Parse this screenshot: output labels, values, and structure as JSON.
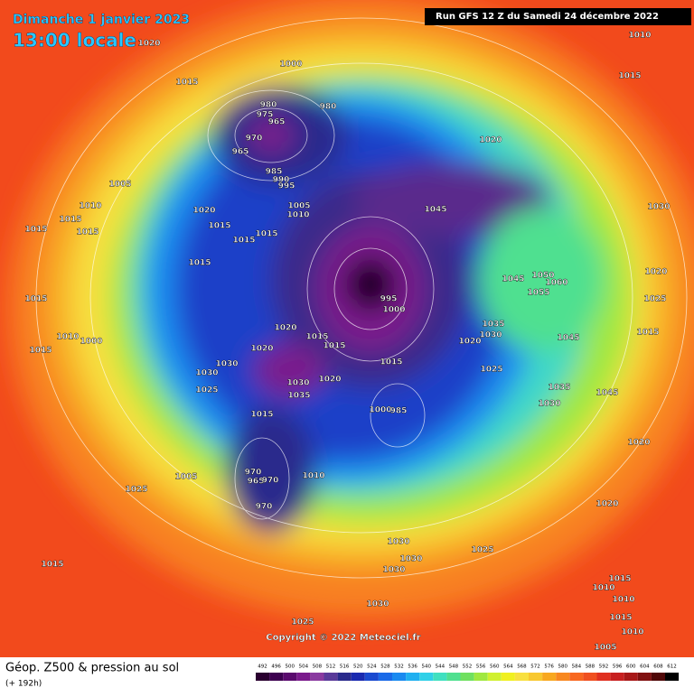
{
  "header": {
    "date": "Dimanche 1 janvier 2023",
    "time": "13:00 locale",
    "run": "Run GFS 12 Z du Samedi 24 décembre 2022"
  },
  "copyright": "Copyright © 2022 Meteociel.fr",
  "footer": {
    "title": "Géop. Z500 & pression au sol",
    "lead": "(+ 192h)"
  },
  "scale": {
    "labels": [
      "492",
      "496",
      "500",
      "504",
      "508",
      "512",
      "516",
      "520",
      "524",
      "528",
      "532",
      "536",
      "540",
      "544",
      "548",
      "552",
      "556",
      "560",
      "564",
      "568",
      "572",
      "576",
      "580",
      "584",
      "588",
      "592",
      "596",
      "600",
      "604",
      "608",
      "612"
    ],
    "colors": [
      "#2a0030",
      "#3d0050",
      "#5a0a6e",
      "#7a1a8c",
      "#8a3aa0",
      "#5a3a9a",
      "#2a2a8c",
      "#1a2ab0",
      "#1a4ad0",
      "#1a6ae8",
      "#1a8af0",
      "#20b0f0",
      "#30d0e8",
      "#40e0c0",
      "#50e090",
      "#70e060",
      "#a0e840",
      "#d0f030",
      "#f0f020",
      "#f8e040",
      "#f8c830",
      "#f8a820",
      "#f88820",
      "#f86820",
      "#f05020",
      "#e03020",
      "#c82020",
      "#a81818",
      "#801010",
      "#500808",
      "#000000"
    ]
  },
  "isobar_labels": [
    "1020",
    "1000",
    "1015",
    "1010",
    "1015",
    "980",
    "975",
    "965",
    "980",
    "970",
    "965",
    "985",
    "990",
    "995",
    "1005",
    "1010",
    "1020",
    "1005",
    "1010",
    "1015",
    "1015",
    "1015",
    "1020",
    "1015",
    "1015",
    "1015",
    "1045",
    "1030",
    "1015",
    "995",
    "1000",
    "1045",
    "1050",
    "1055",
    "1060",
    "1020",
    "1025",
    "1015",
    "1015",
    "1010",
    "1000",
    "1020",
    "1020",
    "1015",
    "1015",
    "1035",
    "1030",
    "1020",
    "1045",
    "1015",
    "1030",
    "1030",
    "1015",
    "1025",
    "1030",
    "1035",
    "1020",
    "1025",
    "1035",
    "1045",
    "1030",
    "1000",
    "985",
    "1015",
    "1020",
    "970",
    "965",
    "970",
    "1010",
    "970",
    "1005",
    "1025",
    "1020",
    "1030",
    "1025",
    "1030",
    "1030",
    "1015",
    "1015",
    "1010",
    "1010",
    "1030",
    "1025",
    "1015",
    "1010",
    "1005"
  ]
}
